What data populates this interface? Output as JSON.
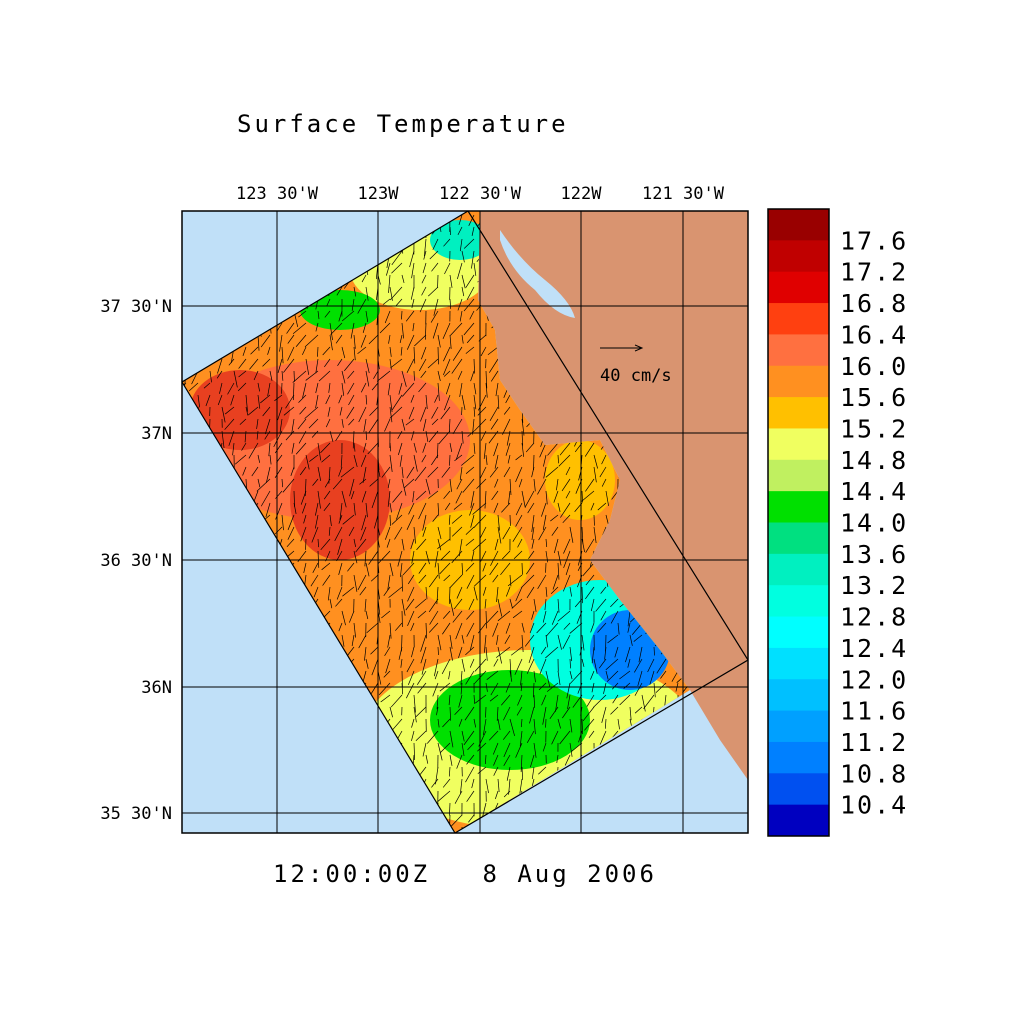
{
  "title": "Surface Temperature",
  "lon_labels": [
    "123 30'W",
    "123W",
    "122 30'W",
    "122W",
    "121 30'W"
  ],
  "lat_labels": [
    "37 30'N",
    "37N",
    "36 30'N",
    "36N",
    "35 30'N"
  ],
  "scale_label": "40 cm/s",
  "timestamp": "12:00:00Z   8 Aug 2006",
  "colorbar": {
    "labels": [
      "17.6",
      "17.2",
      "16.8",
      "16.4",
      "16.0",
      "15.6",
      "15.2",
      "14.8",
      "14.4",
      "14.0",
      "13.6",
      "13.2",
      "12.8",
      "12.4",
      "12.0",
      "11.6",
      "11.2",
      "10.8",
      "10.4"
    ],
    "colors": [
      "#990000",
      "#c00000",
      "#e00000",
      "#ff4010",
      "#ff7040",
      "#ff9020",
      "#ffc000",
      "#f0ff60",
      "#c0f060",
      "#00e000",
      "#00e080",
      "#00f0c0",
      "#00ffe0",
      "#00ffff",
      "#00e0ff",
      "#00c0ff",
      "#00a0ff",
      "#0080ff",
      "#0050f0",
      "#0000c0"
    ]
  }
}
